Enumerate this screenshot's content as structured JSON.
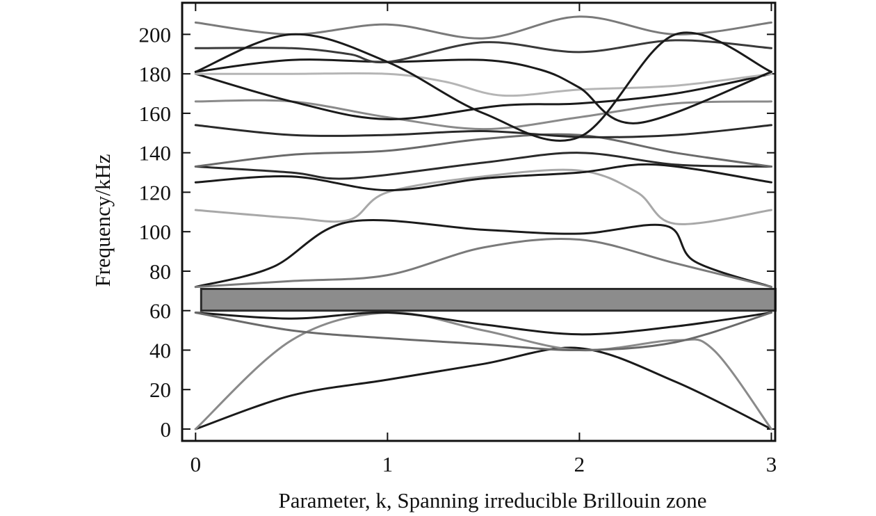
{
  "chart_data": {
    "type": "line",
    "title": "",
    "xlabel": "Parameter, k, Spanning irreducible Brillouin zone",
    "ylabel": "Frequency/kHz",
    "xlim": [
      -0.07,
      3.02
    ],
    "ylim": [
      -6,
      216
    ],
    "xticks": [
      0,
      1,
      2,
      3
    ],
    "yticks": [
      0,
      20,
      40,
      60,
      80,
      100,
      120,
      140,
      160,
      180,
      200
    ],
    "grid": false,
    "legend": "none",
    "band_gap": {
      "from": 60,
      "to": 71,
      "color": "#8c8c8c"
    },
    "series": [
      {
        "color": "#1a1a1a",
        "x": [
          0,
          0.5,
          1,
          1.5,
          2,
          2.5,
          3
        ],
        "y": [
          0,
          17,
          25,
          33,
          41,
          24,
          0
        ]
      },
      {
        "color": "#8a8a8a",
        "x": [
          0,
          0.5,
          1,
          1.5,
          2,
          2.5,
          2.7,
          3
        ],
        "y": [
          0,
          45,
          59,
          50,
          40,
          45,
          40,
          0
        ]
      },
      {
        "color": "#1a1a1a",
        "x": [
          0,
          0.5,
          1,
          1.5,
          2,
          2.5,
          3
        ],
        "y": [
          59,
          56,
          59,
          53,
          48,
          52,
          59
        ]
      },
      {
        "color": "#6a6a6a",
        "x": [
          0,
          0.5,
          1,
          1.5,
          2,
          2.5,
          3
        ],
        "y": [
          59,
          50,
          46,
          43,
          40,
          44,
          59
        ]
      },
      {
        "color": "#1a1a1a",
        "x": [
          0,
          0.4,
          0.8,
          1.5,
          2,
          2.45,
          2.6,
          3
        ],
        "y": [
          72,
          82,
          105,
          101,
          99,
          103,
          85,
          72
        ]
      },
      {
        "color": "#7a7a7a",
        "x": [
          0,
          0.5,
          1,
          1.5,
          2,
          2.5,
          3
        ],
        "y": [
          72,
          75,
          78,
          92,
          96,
          84,
          72
        ]
      },
      {
        "color": "#a8a8a8",
        "x": [
          0,
          0.5,
          0.8,
          1,
          1.5,
          2,
          2.3,
          2.5,
          3
        ],
        "y": [
          111,
          107,
          106,
          120,
          128,
          131,
          120,
          104,
          111
        ]
      },
      {
        "color": "#1a1a1a",
        "x": [
          0,
          0.5,
          1,
          1.5,
          2,
          2.4,
          3
        ],
        "y": [
          125,
          128,
          121,
          127,
          130,
          134,
          125
        ]
      },
      {
        "color": "#2a2a2a",
        "x": [
          0,
          0.5,
          0.8,
          1.5,
          2,
          2.5,
          3
        ],
        "y": [
          133,
          130,
          127,
          135,
          140,
          134,
          133
        ]
      },
      {
        "color": "#6a6a6a",
        "x": [
          0,
          0.5,
          1,
          1.5,
          2,
          2.5,
          3
        ],
        "y": [
          133,
          139,
          141,
          147,
          149,
          140,
          133
        ]
      },
      {
        "color": "#2a2a2a",
        "x": [
          0,
          0.5,
          1,
          1.5,
          2,
          2.5,
          3
        ],
        "y": [
          154,
          149,
          149,
          151,
          148,
          149,
          154
        ]
      },
      {
        "color": "#8a8a8a",
        "x": [
          0,
          0.5,
          1,
          1.5,
          2,
          2.5,
          3
        ],
        "y": [
          166,
          166,
          158,
          152,
          158,
          165,
          166
        ]
      },
      {
        "color": "#1a1a1a",
        "x": [
          0,
          0.5,
          1,
          1.6,
          2,
          2.5,
          3
        ],
        "y": [
          180,
          166,
          157,
          164,
          165,
          170,
          180
        ]
      },
      {
        "color": "#b5b5b5",
        "x": [
          0,
          0.5,
          1,
          1.3,
          1.6,
          2,
          2.5,
          3
        ],
        "y": [
          180,
          180,
          180,
          176,
          169,
          172,
          174,
          180
        ]
      },
      {
        "color": "#1a1a1a",
        "x": [
          0,
          0.5,
          1,
          1.5,
          1.8,
          2,
          2.3,
          3
        ],
        "y": [
          181,
          187,
          186,
          187,
          182,
          173,
          155,
          181
        ]
      },
      {
        "color": "#3a3a3a",
        "x": [
          0,
          0.5,
          0.8,
          1,
          1.5,
          2,
          2.5,
          3
        ],
        "y": [
          193,
          193,
          190,
          186,
          196,
          191,
          197,
          193
        ]
      },
      {
        "color": "#7a7a7a",
        "x": [
          0,
          0.5,
          1,
          1.5,
          2,
          2.5,
          3
        ],
        "y": [
          206,
          200,
          205,
          198,
          209,
          200,
          206
        ]
      },
      {
        "color": "#1a1a1a",
        "x": [
          0,
          0.5,
          1,
          1.5,
          2,
          2.5,
          3
        ],
        "y": [
          181,
          200,
          186,
          160,
          148,
          200,
          181
        ]
      }
    ]
  }
}
